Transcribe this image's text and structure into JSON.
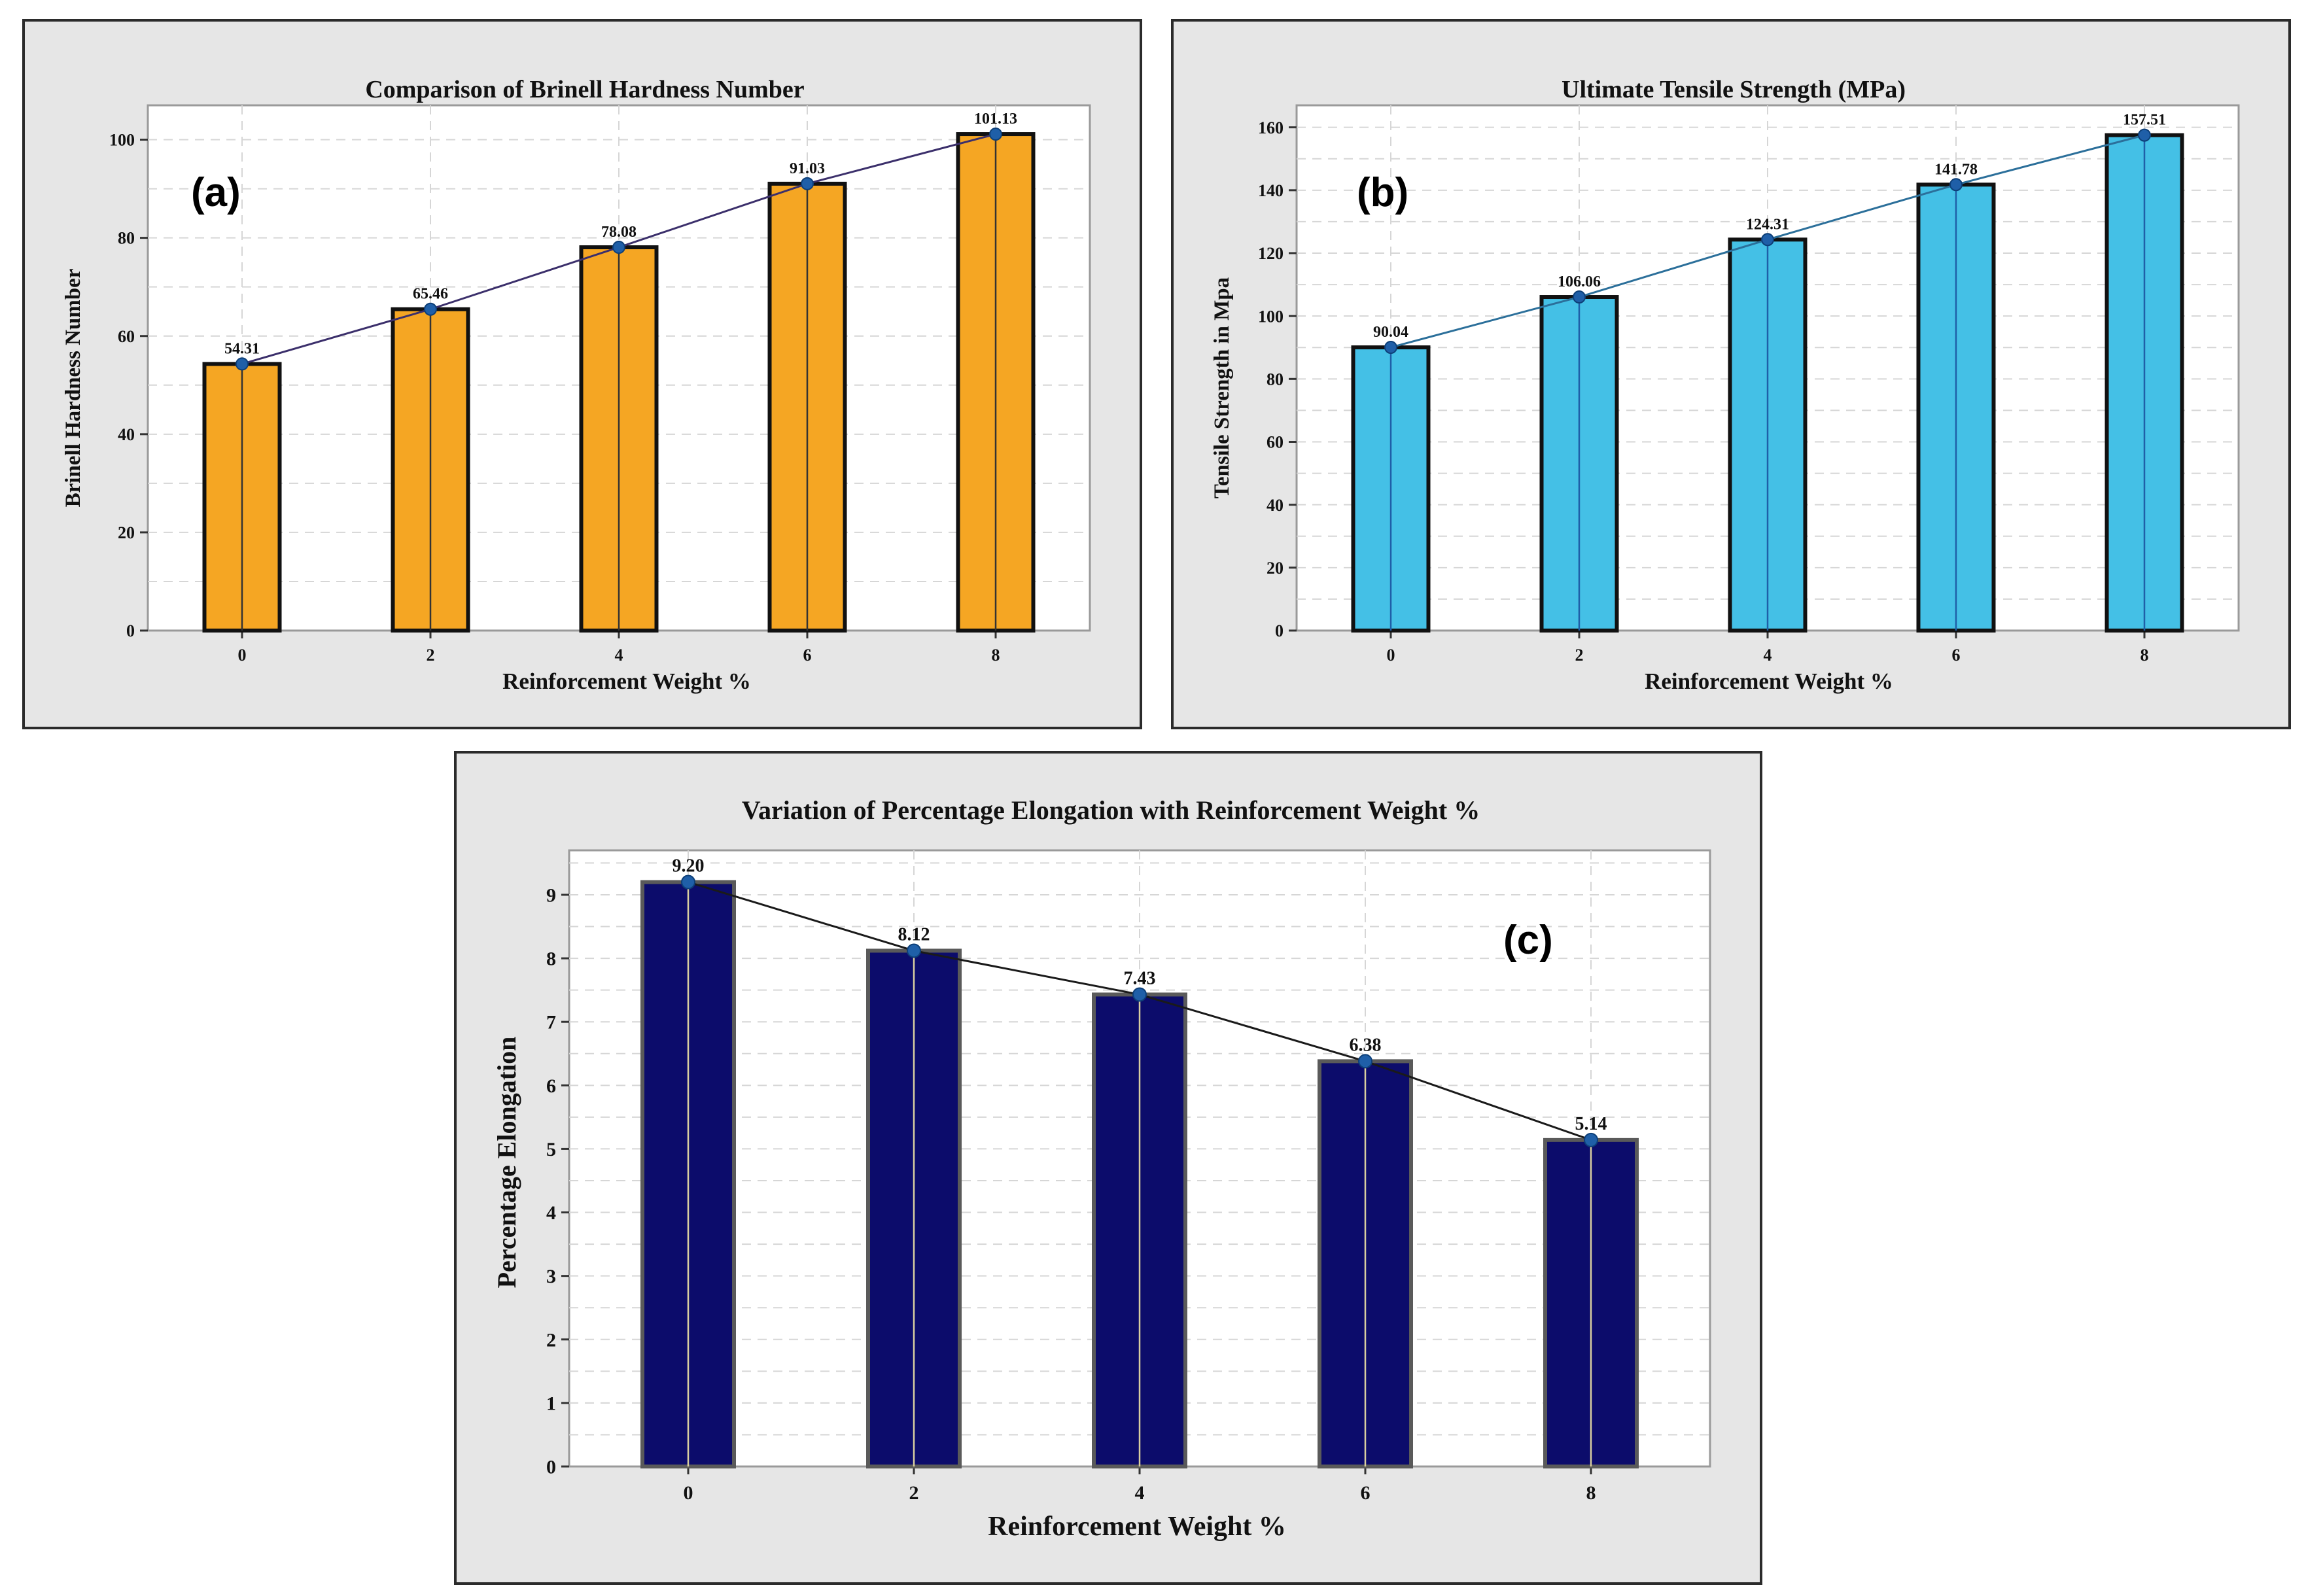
{
  "chart_data": [
    {
      "id": "a",
      "type": "bar",
      "panel_label": "(a)",
      "title": "Comparison of Brinell Hardness Number",
      "xlabel": "Reinforcement Weight %",
      "ylabel": "Brinell Hardness Number",
      "categories": [
        "0",
        "2",
        "4",
        "6",
        "8"
      ],
      "values": [
        54.31,
        65.46,
        78.08,
        91.03,
        101.13
      ],
      "value_labels": [
        "54.31",
        "65.46",
        "78.08",
        "91.03",
        "101.13"
      ],
      "ylim": [
        0,
        107
      ],
      "yticks": [
        0,
        20,
        40,
        60,
        80,
        100
      ],
      "grid": true,
      "overlay_line": true,
      "bar_color": "#f5a623",
      "line_color": "#3b2f6b",
      "marker_color": "#1f5fa8",
      "inner_line_color": "#333333"
    },
    {
      "id": "b",
      "type": "bar",
      "panel_label": "(b)",
      "title": "Ultimate Tensile Strength (MPa)",
      "xlabel": "Reinforcement Weight %",
      "ylabel": "Tensile Strength in Mpa",
      "categories": [
        "0",
        "2",
        "4",
        "6",
        "8"
      ],
      "values": [
        90.04,
        106.06,
        124.31,
        141.78,
        157.51
      ],
      "value_labels": [
        "90.04",
        "106.06",
        "124.31",
        "141.78",
        "157.51"
      ],
      "ylim": [
        0,
        167
      ],
      "yticks": [
        0,
        20,
        40,
        60,
        80,
        100,
        120,
        140,
        160
      ],
      "grid": true,
      "overlay_line": true,
      "bar_color": "#44c0e6",
      "line_color": "#2b6f9a",
      "marker_color": "#1f5fa8",
      "inner_line_color": "#1f5fa8"
    },
    {
      "id": "c",
      "type": "bar",
      "panel_label": "(c)",
      "title": "Variation of  Percentage Elongation with Reinforcement Weight %",
      "xlabel": "Reinforcement Weight %",
      "ylabel": "Percentage Elongation",
      "categories": [
        "0",
        "2",
        "4",
        "6",
        "8"
      ],
      "values": [
        9.2,
        8.12,
        7.43,
        6.38,
        5.14
      ],
      "value_labels": [
        "9.20",
        "8.12",
        "7.43",
        "6.38",
        "5.14"
      ],
      "ylim": [
        0,
        9.7
      ],
      "yticks": [
        0,
        1,
        2,
        3,
        4,
        5,
        6,
        7,
        8,
        9
      ],
      "grid": true,
      "overlay_line": true,
      "bar_color": "#0c0c6b",
      "line_color": "#1a1a1a",
      "marker_color": "#1f5fa8",
      "inner_line_color": "#d9cfa0"
    }
  ]
}
